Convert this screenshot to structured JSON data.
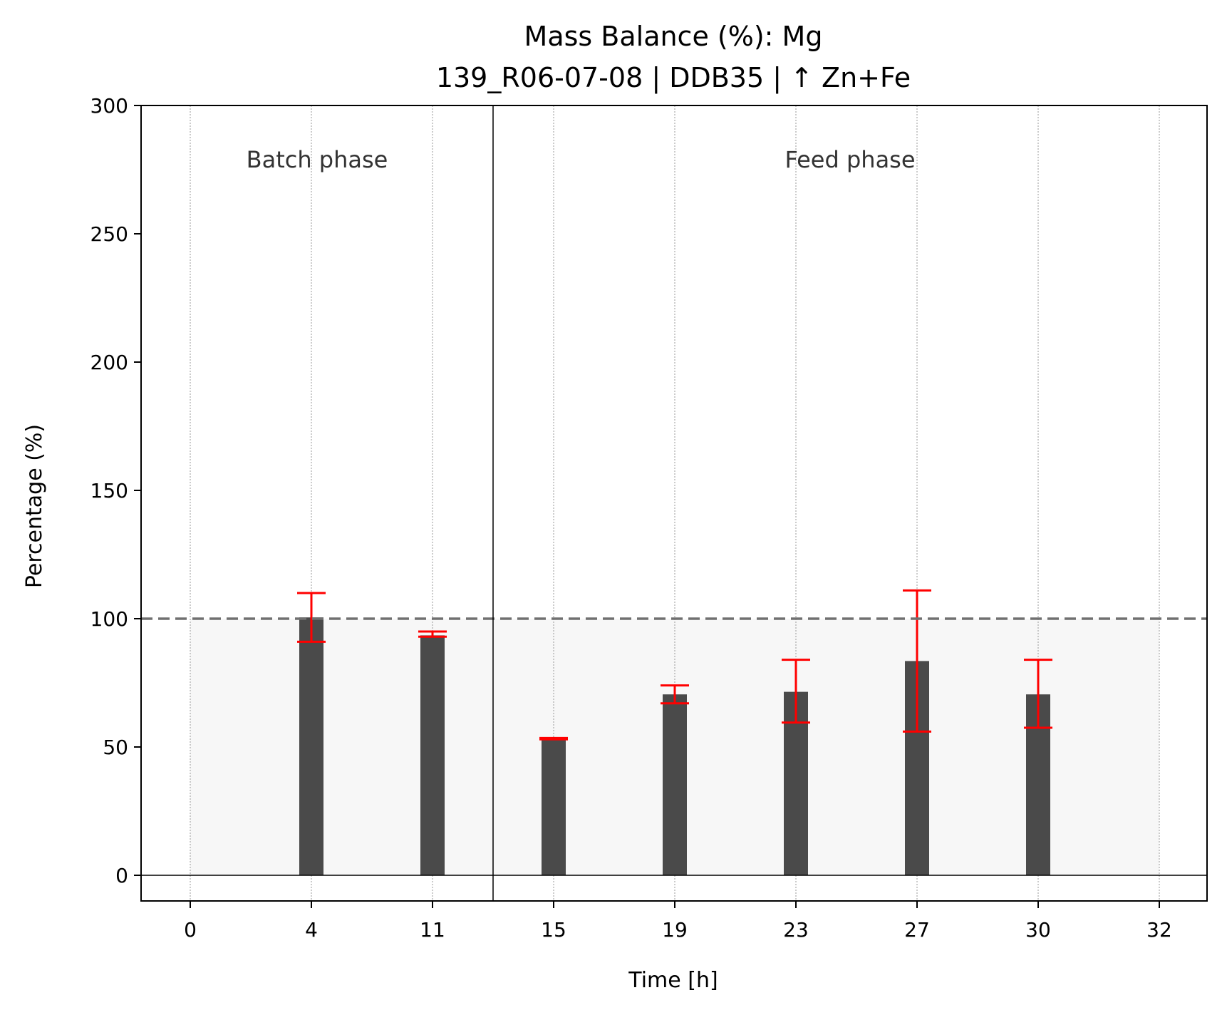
{
  "chart_data": {
    "type": "bar",
    "title": "Mass Balance (%): Mg",
    "subtitle": "139_R06-07-08 | DDB35 | ↑ Zn+Fe",
    "xlabel": "Time [h]",
    "ylabel": "Percentage (%)",
    "ylim": [
      -10,
      300
    ],
    "yticks": [
      0,
      50,
      100,
      150,
      200,
      250,
      300
    ],
    "categories": [
      "0",
      "4",
      "11",
      "15",
      "19",
      "23",
      "27",
      "30",
      "32"
    ],
    "values": [
      null,
      100.5,
      93.5,
      53.0,
      70.5,
      71.5,
      83.5,
      70.5,
      null
    ],
    "error_low": [
      null,
      91,
      93,
      53,
      67,
      59.5,
      56,
      57.5,
      null
    ],
    "error_high": [
      null,
      110,
      95,
      53.5,
      74,
      84,
      111,
      84,
      null
    ],
    "reference_line": 100,
    "phases": [
      {
        "label": "Batch phase",
        "start_index": 0,
        "end_index": 2
      },
      {
        "label": "Feed phase",
        "start_index": 3,
        "end_index": 8
      }
    ],
    "grid": "x-only-dotted",
    "colors": {
      "bar": "#4a4a4a",
      "error": "#ff0000",
      "reference": "#707070",
      "shade": "#f7f7f7",
      "grid": "#999999"
    }
  }
}
